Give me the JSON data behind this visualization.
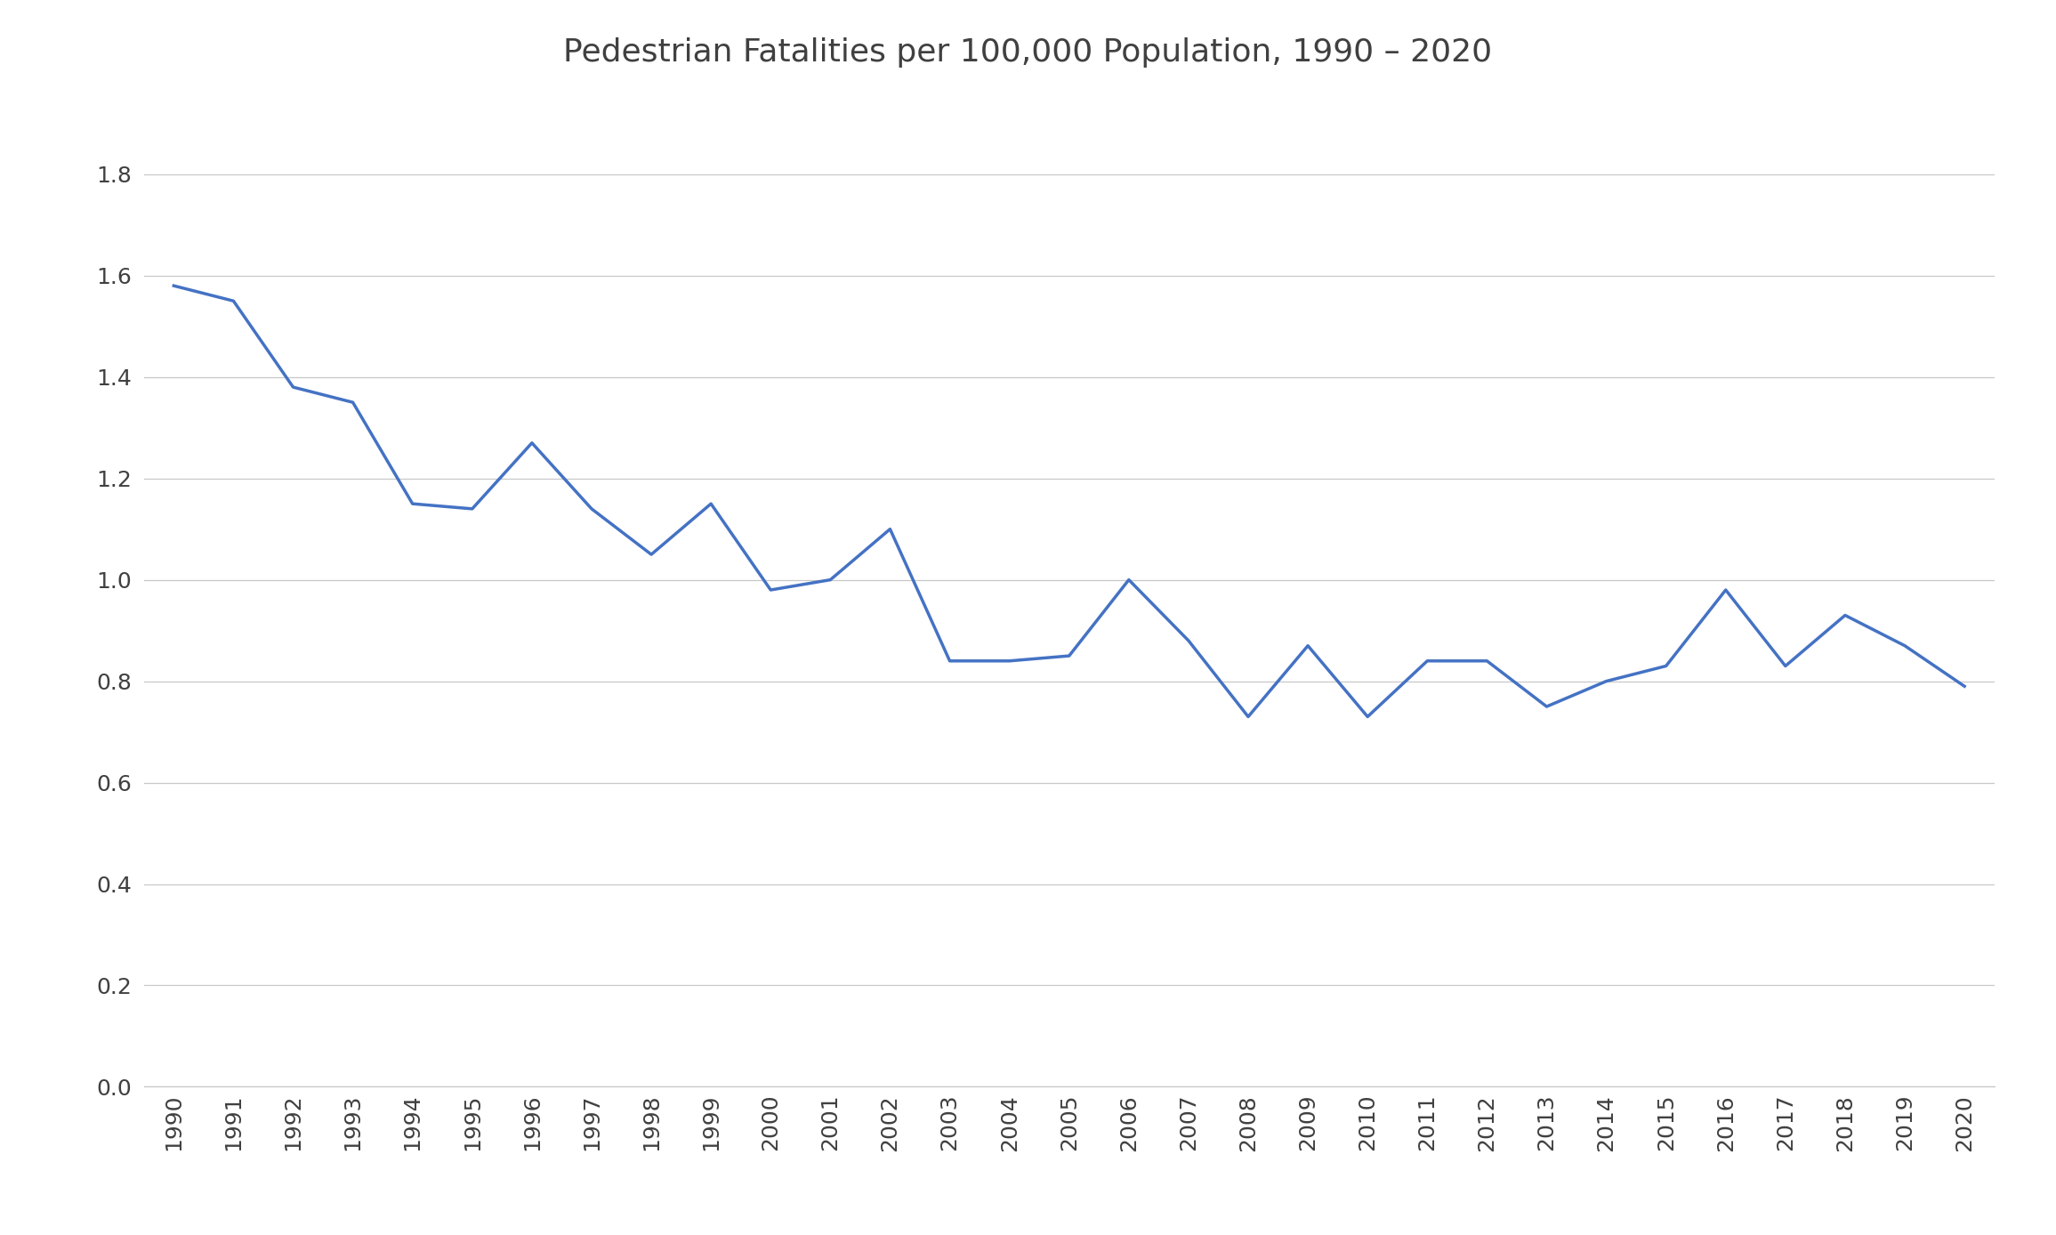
{
  "title": "Pedestrian Fatalities per 100,000 Population, 1990 – 2020",
  "years": [
    1990,
    1991,
    1992,
    1993,
    1994,
    1995,
    1996,
    1997,
    1998,
    1999,
    2000,
    2001,
    2002,
    2003,
    2004,
    2005,
    2006,
    2007,
    2008,
    2009,
    2010,
    2011,
    2012,
    2013,
    2014,
    2015,
    2016,
    2017,
    2018,
    2019,
    2020
  ],
  "values": [
    1.58,
    1.55,
    1.38,
    1.35,
    1.15,
    1.14,
    1.27,
    1.14,
    1.05,
    1.15,
    0.98,
    1.0,
    1.1,
    0.84,
    0.84,
    0.85,
    1.0,
    0.88,
    0.73,
    0.87,
    0.73,
    0.84,
    0.84,
    0.75,
    0.8,
    0.83,
    0.98,
    0.83,
    0.93,
    0.87,
    0.79
  ],
  "line_color": "#4472C4",
  "line_width": 2.5,
  "background_color": "#FFFFFF",
  "grid_color": "#C8C8C8",
  "title_fontsize": 26,
  "tick_fontsize": 18,
  "ylim": [
    0.0,
    1.9
  ],
  "yticks": [
    0.0,
    0.2,
    0.4,
    0.6,
    0.8,
    1.0,
    1.2,
    1.4,
    1.6,
    1.8
  ],
  "title_color": "#404040",
  "tick_color": "#404040"
}
